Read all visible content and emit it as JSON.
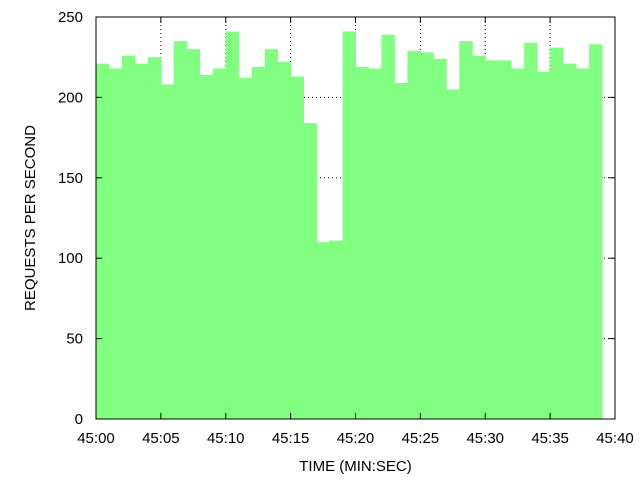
{
  "chart_data": {
    "type": "bar",
    "title": "",
    "xlabel": "TIME (MIN:SEC)",
    "ylabel": "REQUESTS PER SECOND",
    "xlim": [
      0,
      40
    ],
    "ylim": [
      0,
      250
    ],
    "x_ticks": [
      {
        "value": 0,
        "label": "45:00"
      },
      {
        "value": 5,
        "label": "45:05"
      },
      {
        "value": 10,
        "label": "45:10"
      },
      {
        "value": 15,
        "label": "45:15"
      },
      {
        "value": 20,
        "label": "45:20"
      },
      {
        "value": 25,
        "label": "45:25"
      },
      {
        "value": 30,
        "label": "45:30"
      },
      {
        "value": 35,
        "label": "45:35"
      },
      {
        "value": 40,
        "label": "45:40"
      }
    ],
    "y_ticks": [
      {
        "value": 0,
        "label": "0"
      },
      {
        "value": 50,
        "label": "50"
      },
      {
        "value": 100,
        "label": "100"
      },
      {
        "value": 150,
        "label": "150"
      },
      {
        "value": 200,
        "label": "200"
      },
      {
        "value": 250,
        "label": "250"
      }
    ],
    "grid": "dotted, right side only",
    "legend": "none",
    "bar_color": "#80ff80",
    "x": [
      0,
      1,
      2,
      3,
      4,
      5,
      6,
      7,
      8,
      9,
      10,
      11,
      12,
      13,
      14,
      15,
      16,
      17,
      18,
      19,
      20,
      21,
      22,
      23,
      24,
      25,
      26,
      27,
      28,
      29,
      30,
      31,
      32,
      33,
      34,
      35,
      36,
      37,
      38
    ],
    "values": [
      221,
      218,
      226,
      221,
      225,
      208,
      235,
      230,
      214,
      218,
      241,
      212,
      219,
      230,
      222,
      213,
      184,
      110,
      111,
      241,
      219,
      218,
      239,
      209,
      229,
      228,
      224,
      205,
      235,
      226,
      223,
      223,
      218,
      234,
      216,
      231,
      221,
      218,
      233
    ]
  }
}
